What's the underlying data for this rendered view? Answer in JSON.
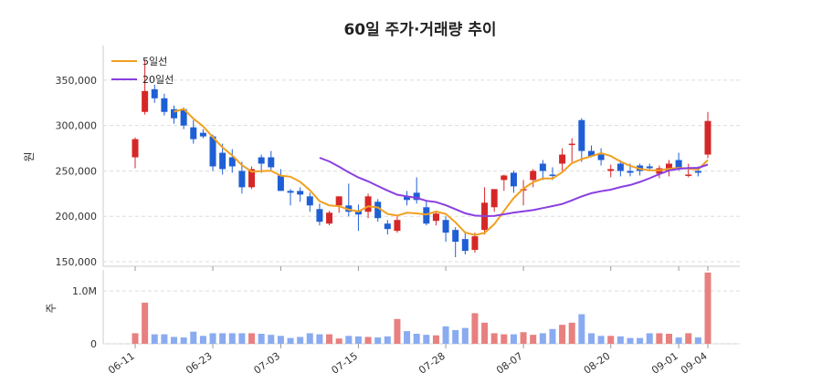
{
  "chart_data": [
    {
      "type": "candlestick",
      "title": "60일 주가·거래량 추이",
      "ylabel": "원",
      "ylim": [
        145000,
        380000
      ],
      "yticks": [
        150000,
        200000,
        250000,
        300000,
        350000
      ],
      "ytick_labels": [
        "150,000",
        "200,000",
        "250,000",
        "300,000",
        "350,000"
      ],
      "xtick_labels": [
        "06-11",
        "06-23",
        "07-03",
        "07-15",
        "07-28",
        "08-07",
        "08-20",
        "09-01",
        "09-04"
      ],
      "xtick_index": [
        0,
        8,
        15,
        23,
        32,
        40,
        49,
        56,
        59
      ],
      "grid": true,
      "legend_position": "top-left",
      "up_color": "#d62728",
      "down_color": "#1f5fd6",
      "candles": [
        [
          265000,
          287000,
          253000,
          285000
        ],
        [
          315000,
          372000,
          312000,
          338000
        ],
        [
          340000,
          345000,
          325000,
          330000
        ],
        [
          330000,
          335000,
          311000,
          315000
        ],
        [
          318000,
          322000,
          302000,
          308000
        ],
        [
          318000,
          320000,
          296000,
          300000
        ],
        [
          298000,
          306000,
          280000,
          285000
        ],
        [
          292000,
          296000,
          286000,
          288000
        ],
        [
          288000,
          290000,
          250000,
          255000
        ],
        [
          270000,
          280000,
          246000,
          252000
        ],
        [
          265000,
          274000,
          248000,
          255000
        ],
        [
          250000,
          260000,
          225000,
          232000
        ],
        [
          232000,
          255000,
          230000,
          252000
        ],
        [
          265000,
          268000,
          248000,
          258000
        ],
        [
          265000,
          272000,
          250000,
          254000
        ],
        [
          245000,
          252000,
          228000,
          228000
        ],
        [
          228000,
          230000,
          212000,
          226000
        ],
        [
          228000,
          232000,
          216000,
          224000
        ],
        [
          222000,
          226000,
          205000,
          212000
        ],
        [
          208000,
          214000,
          190000,
          194000
        ],
        [
          192000,
          206000,
          190000,
          204000
        ],
        [
          212000,
          222000,
          204000,
          222000
        ],
        [
          212000,
          236000,
          200000,
          205000
        ],
        [
          206000,
          213000,
          184000,
          202000
        ],
        [
          205000,
          225000,
          198000,
          222000
        ],
        [
          216000,
          219000,
          194000,
          198000
        ],
        [
          192000,
          196000,
          180000,
          186000
        ],
        [
          184000,
          200000,
          182000,
          196000
        ],
        [
          222000,
          228000,
          212000,
          218000
        ],
        [
          226000,
          243000,
          214000,
          218000
        ],
        [
          210000,
          218000,
          190000,
          192000
        ],
        [
          195000,
          205000,
          190000,
          203000
        ],
        [
          196000,
          200000,
          172000,
          182000
        ],
        [
          185000,
          188000,
          155000,
          172000
        ],
        [
          175000,
          182000,
          158000,
          162000
        ],
        [
          163000,
          182000,
          160000,
          178000
        ],
        [
          185000,
          232000,
          180000,
          215000
        ],
        [
          210000,
          228000,
          205000,
          230000
        ],
        [
          240000,
          246000,
          228000,
          245000
        ],
        [
          248000,
          250000,
          226000,
          233000
        ],
        [
          230000,
          240000,
          212000,
          230000
        ],
        [
          240000,
          252000,
          232000,
          250000
        ],
        [
          258000,
          262000,
          240000,
          250000
        ],
        [
          246000,
          254000,
          240000,
          245000
        ],
        [
          258000,
          275000,
          250000,
          268000
        ],
        [
          280000,
          286000,
          260000,
          280000
        ],
        [
          306000,
          308000,
          260000,
          272000
        ],
        [
          272000,
          278000,
          265000,
          266000
        ],
        [
          268000,
          275000,
          256000,
          262000
        ],
        [
          250000,
          257000,
          243000,
          252000
        ],
        [
          258000,
          262000,
          244000,
          250000
        ],
        [
          250000,
          258000,
          244000,
          248000
        ],
        [
          256000,
          258000,
          245000,
          250000
        ],
        [
          255000,
          258000,
          250000,
          253000
        ],
        [
          247000,
          256000,
          242000,
          253000
        ],
        [
          250000,
          262000,
          244000,
          258000
        ],
        [
          262000,
          270000,
          250000,
          253000
        ],
        [
          246000,
          258000,
          243000,
          246000
        ],
        [
          250000,
          255000,
          244000,
          248000
        ],
        [
          268000,
          315000,
          264000,
          305000
        ]
      ],
      "series": [
        {
          "name": "5일선",
          "color": "#f0a020",
          "values": [
            null,
            null,
            null,
            null,
            null,
            null,
            null,
            null,
            null,
            null,
            null,
            null,
            null,
            null,
            null,
            null,
            null,
            null,
            null,
            null,
            null,
            null,
            null,
            null,
            null,
            null,
            null,
            null,
            null,
            null,
            null,
            null,
            null,
            null,
            null,
            null,
            null,
            null,
            null,
            null,
            null,
            null,
            null,
            null,
            null,
            null,
            null,
            null,
            null,
            null,
            null,
            null,
            null,
            null,
            null,
            null,
            null,
            null,
            null,
            null
          ]
        },
        {
          "name": "20일선",
          "color": "#8a3fe0",
          "values": [
            null,
            null,
            null,
            null,
            null,
            null,
            null,
            null,
            null,
            null,
            null,
            null,
            null,
            null,
            null,
            null,
            null,
            null,
            null,
            null,
            null,
            null,
            null,
            null,
            null,
            null,
            null,
            null,
            null,
            null,
            null,
            null,
            null,
            null,
            null,
            null,
            null,
            null,
            null,
            null,
            null,
            null,
            null,
            null,
            null,
            null,
            null,
            null,
            null,
            null,
            null,
            null,
            null,
            null,
            null,
            null,
            null,
            null,
            null,
            null
          ]
        }
      ]
    },
    {
      "type": "bar",
      "ylabel": "주",
      "ylim": [
        0,
        1400000
      ],
      "yticks": [
        0,
        1000000
      ],
      "ytick_labels": [
        "0",
        "1.0M"
      ],
      "values": [
        200000,
        780000,
        180000,
        180000,
        130000,
        120000,
        230000,
        150000,
        200000,
        200000,
        200000,
        200000,
        200000,
        190000,
        170000,
        150000,
        110000,
        130000,
        200000,
        180000,
        180000,
        100000,
        150000,
        140000,
        130000,
        120000,
        140000,
        470000,
        240000,
        190000,
        170000,
        160000,
        330000,
        260000,
        300000,
        580000,
        400000,
        200000,
        180000,
        180000,
        220000,
        170000,
        200000,
        280000,
        360000,
        400000,
        560000,
        200000,
        150000,
        150000,
        140000,
        110000,
        110000,
        200000,
        200000,
        190000,
        120000,
        200000,
        120000,
        1350000
      ]
    }
  ]
}
